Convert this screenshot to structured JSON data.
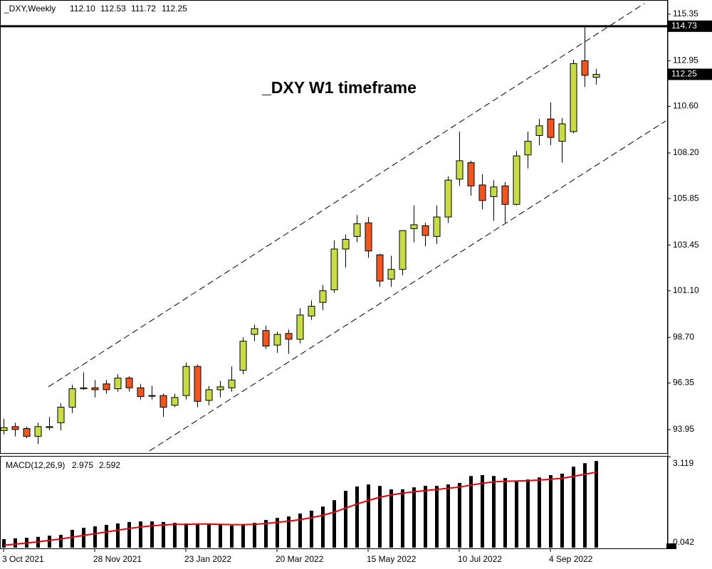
{
  "chart_data": [
    {
      "type": "candlestick",
      "symbol": "_DXY,Weekly",
      "header_labels": [
        "112.10",
        "112.53",
        "111.72",
        "112.25"
      ],
      "title": "_DXY W1 timeframe",
      "categories": [
        "3 Oct 2021",
        null,
        null,
        null,
        null,
        null,
        null,
        null,
        "28 Nov 2021",
        null,
        null,
        null,
        null,
        null,
        null,
        null,
        "23 Jan 2022",
        null,
        null,
        null,
        null,
        null,
        null,
        null,
        "20 Mar 2022",
        null,
        null,
        null,
        null,
        null,
        null,
        null,
        "15 May 2022",
        null,
        null,
        null,
        null,
        null,
        null,
        null,
        "10 Jul 2022",
        null,
        null,
        null,
        null,
        null,
        null,
        null,
        "4 Sep 2022",
        null,
        null,
        null,
        null
      ],
      "open": [
        93.9,
        94.1,
        94.0,
        93.6,
        94.05,
        94.3,
        95.1,
        96.05,
        96.1,
        96.3,
        96.05,
        96.6,
        96.1,
        95.7,
        95.7,
        95.2,
        95.7,
        97.2,
        95.45,
        96.0,
        96.1,
        97.0,
        98.85,
        99.05,
        98.3,
        98.9,
        98.6,
        99.8,
        100.5,
        101.15,
        103.25,
        103.9,
        104.6,
        102.95,
        101.7,
        102.2,
        104.3,
        104.45,
        103.9,
        104.9,
        106.85,
        107.7,
        106.55,
        105.95,
        106.5,
        105.55,
        108.1,
        109.1,
        109.95,
        108.8,
        109.3,
        112.95,
        112.1
      ],
      "high": [
        94.5,
        94.3,
        94.1,
        94.3,
        94.6,
        95.3,
        96.25,
        96.9,
        96.5,
        96.5,
        96.8,
        96.7,
        96.3,
        96.2,
        95.8,
        95.8,
        97.4,
        97.3,
        96.2,
        96.45,
        97.2,
        98.7,
        99.35,
        99.3,
        99.0,
        99.1,
        100.2,
        100.6,
        101.4,
        103.7,
        104.0,
        105.0,
        104.9,
        103.0,
        102.9,
        104.2,
        105.5,
        104.6,
        105.5,
        107.0,
        109.3,
        107.8,
        107.1,
        106.8,
        106.7,
        108.3,
        109.3,
        109.95,
        110.8,
        110.0,
        113.0,
        114.78,
        112.53
      ],
      "low": [
        93.7,
        93.6,
        93.5,
        93.2,
        93.9,
        93.9,
        94.8,
        96.0,
        95.6,
        95.8,
        95.9,
        95.9,
        95.5,
        95.5,
        94.6,
        95.1,
        95.5,
        95.1,
        95.2,
        95.6,
        95.9,
        96.8,
        98.5,
        98.1,
        97.9,
        97.85,
        98.4,
        99.6,
        100.1,
        101.0,
        102.3,
        103.6,
        102.8,
        101.3,
        101.3,
        101.9,
        103.6,
        103.4,
        103.5,
        104.6,
        106.5,
        106.0,
        105.3,
        104.7,
        104.6,
        105.5,
        107.4,
        108.6,
        108.6,
        107.7,
        109.2,
        111.6,
        111.72
      ],
      "close": [
        94.05,
        93.95,
        93.6,
        94.1,
        94.1,
        95.1,
        96.05,
        96.1,
        96.0,
        96.0,
        96.6,
        96.1,
        95.65,
        95.7,
        95.1,
        95.6,
        97.2,
        95.4,
        96.0,
        96.15,
        96.5,
        98.5,
        99.15,
        98.25,
        98.85,
        98.6,
        99.85,
        100.3,
        101.1,
        103.25,
        103.75,
        104.55,
        103.15,
        101.6,
        102.2,
        104.2,
        104.5,
        103.95,
        104.9,
        106.8,
        107.8,
        106.5,
        105.75,
        106.45,
        105.55,
        108.05,
        108.8,
        109.6,
        109.0,
        109.7,
        112.8,
        112.2,
        112.25
      ],
      "up_color": "#c8dc46",
      "down_color": "#f0561e",
      "ylim": [
        92.7,
        116.08
      ],
      "yticks": [
        115.35,
        112.95,
        {
          "value": 110.6,
          "label": "110.60"
        },
        {
          "value": 108.2,
          "label": "108.20"
        },
        105.85,
        103.45,
        {
          "value": 101.1,
          "label": "101.10"
        },
        {
          "value": 98.7,
          "label": "98.70"
        },
        96.35,
        93.95
      ],
      "hline": {
        "value": 114.73,
        "label": "114.73"
      },
      "trendlines": [
        {
          "x": [
            3.94,
            56.25
          ],
          "y": [
            96.15,
            115.9
          ]
        },
        {
          "x": [
            12.81,
            58.13
          ],
          "y": [
            92.85,
            109.85
          ]
        }
      ]
    },
    {
      "type": "macd",
      "label": "MACD(12,26,9)",
      "values": [
        0.29,
        0.32,
        0.34,
        0.37,
        0.41,
        0.44,
        0.61,
        0.68,
        0.73,
        0.78,
        0.83,
        0.88,
        0.9,
        0.9,
        0.88,
        0.85,
        0.83,
        0.83,
        0.8,
        0.78,
        0.76,
        0.78,
        0.85,
        0.95,
        1.02,
        1.07,
        1.17,
        1.27,
        1.41,
        1.63,
        1.95,
        2.1,
        2.17,
        2.12,
        2.0,
        2.0,
        2.07,
        2.12,
        2.12,
        2.17,
        2.22,
        2.46,
        2.49,
        2.46,
        2.39,
        2.27,
        2.34,
        2.41,
        2.49,
        2.54,
        2.78,
        2.9,
        2.975
      ],
      "signal": [
        0.08,
        0.12,
        0.16,
        0.2,
        0.25,
        0.3,
        0.36,
        0.42,
        0.48,
        0.54,
        0.6,
        0.66,
        0.71,
        0.75,
        0.78,
        0.8,
        0.8,
        0.81,
        0.81,
        0.8,
        0.79,
        0.79,
        0.8,
        0.83,
        0.87,
        0.91,
        0.96,
        1.03,
        1.11,
        1.22,
        1.36,
        1.5,
        1.62,
        1.73,
        1.81,
        1.87,
        1.92,
        1.96,
        2.0,
        2.04,
        2.08,
        2.15,
        2.21,
        2.26,
        2.28,
        2.29,
        2.3,
        2.32,
        2.35,
        2.38,
        2.45,
        2.52,
        2.592
      ],
      "bar_color": "#000000",
      "signal_color": "#e8000b",
      "ylim": [
        -0.05,
        3.15
      ],
      "yticks": [
        3.119,
        0.042
      ]
    }
  ]
}
